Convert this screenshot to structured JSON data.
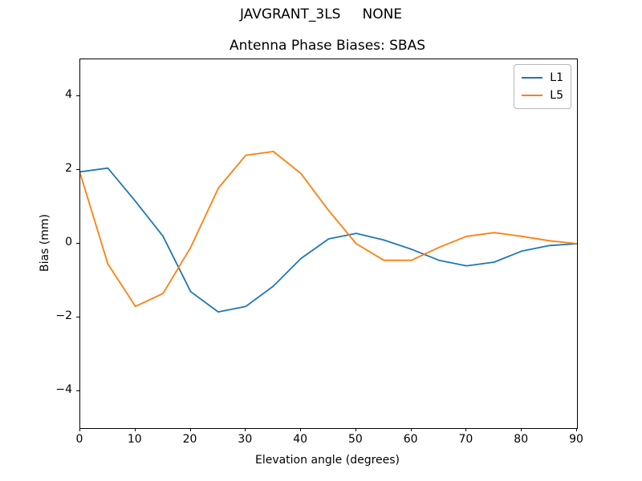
{
  "page": {
    "suptitle": "JAVGRANT_3LS     NONE",
    "background": "#ffffff"
  },
  "chart_data": {
    "type": "line",
    "title": "Antenna Phase Biases: SBAS",
    "xlabel": "Elevation angle (degrees)",
    "ylabel": "Bias (mm)",
    "xlim": [
      0,
      90
    ],
    "ylim": [
      -5,
      5
    ],
    "xticks": [
      0,
      10,
      20,
      30,
      40,
      50,
      60,
      70,
      80,
      90
    ],
    "yticks": [
      -4,
      -2,
      0,
      2,
      4
    ],
    "grid": false,
    "legend": {
      "position": "upper right"
    },
    "x": [
      0,
      5,
      10,
      15,
      20,
      25,
      30,
      35,
      40,
      45,
      50,
      55,
      60,
      65,
      70,
      75,
      80,
      85,
      90
    ],
    "series": [
      {
        "name": "L1",
        "color": "#1f77b4",
        "values": [
          1.95,
          2.05,
          1.15,
          0.2,
          -1.3,
          -1.85,
          -1.7,
          -1.15,
          -0.4,
          0.13,
          0.28,
          0.1,
          -0.15,
          -0.45,
          -0.6,
          -0.5,
          -0.2,
          -0.05,
          0.0
        ]
      },
      {
        "name": "L5",
        "color": "#ff7f0e",
        "values": [
          1.9,
          -0.55,
          -1.7,
          -1.35,
          -0.1,
          1.5,
          2.4,
          2.5,
          1.9,
          0.9,
          0.0,
          -0.45,
          -0.45,
          -0.1,
          0.2,
          0.3,
          0.2,
          0.08,
          0.0
        ]
      }
    ]
  }
}
